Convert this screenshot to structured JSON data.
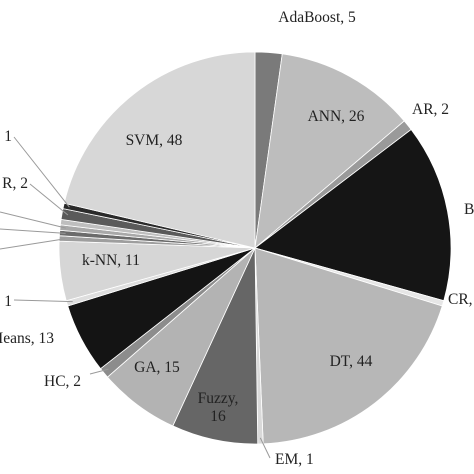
{
  "chart_data": {
    "type": "pie",
    "title": "",
    "start_at_top": true,
    "direction": "clockwise",
    "slices": [
      {
        "label": "AdaBoost, 5",
        "name": "AdaBoost",
        "value": 5,
        "color": "#7a7a7a"
      },
      {
        "label": "ANN, 26",
        "name": "ANN",
        "value": 26,
        "color": "#bdbdbd"
      },
      {
        "label": "AR, 2",
        "name": "AR",
        "value": 2,
        "color": "#9a9a9a"
      },
      {
        "label": "B",
        "name": "B",
        "value": 33,
        "color": "#151515"
      },
      {
        "label": "CR,",
        "name": "CR",
        "value": 1,
        "color": "#e6e6e6"
      },
      {
        "label": "DT, 44",
        "name": "DT",
        "value": 44,
        "color": "#b7b7b7"
      },
      {
        "label": "EM, 1",
        "name": "EM",
        "value": 1,
        "color": "#d9d9d9"
      },
      {
        "label": "Fuzzy,\n16",
        "name": "Fuzzy",
        "value": 16,
        "color": "#666666"
      },
      {
        "label": "GA, 15",
        "name": "GA",
        "value": 15,
        "color": "#b3b3b3"
      },
      {
        "label": "HC, 2",
        "name": "HC",
        "value": 2,
        "color": "#8c8c8c"
      },
      {
        "label": "Means, 13",
        "name": "Means",
        "value": 13,
        "color": "#141414"
      },
      {
        "label": "1",
        "name": "",
        "value": 1,
        "color": "#dedede"
      },
      {
        "label": "k-NN, 11",
        "name": "k-NN",
        "value": 11,
        "color": "#d6d6d6"
      },
      {
        "label": "",
        "name": "",
        "value": 1,
        "color": "#9e9e9e"
      },
      {
        "label": "",
        "name": "",
        "value": 1,
        "color": "#6b6b6b"
      },
      {
        "label": "",
        "name": "",
        "value": 1,
        "color": "#a8a8a8"
      },
      {
        "label": "",
        "name": "",
        "value": 1,
        "color": "#bebebe"
      },
      {
        "label": "R, 2",
        "name": "R",
        "value": 2,
        "color": "#5a5a5a"
      },
      {
        "label": "1",
        "name": "",
        "value": 1,
        "color": "#2a2a2a"
      },
      {
        "label": "SVM, 48",
        "name": "SVM",
        "value": 48,
        "color": "#d7d7d7"
      }
    ]
  }
}
